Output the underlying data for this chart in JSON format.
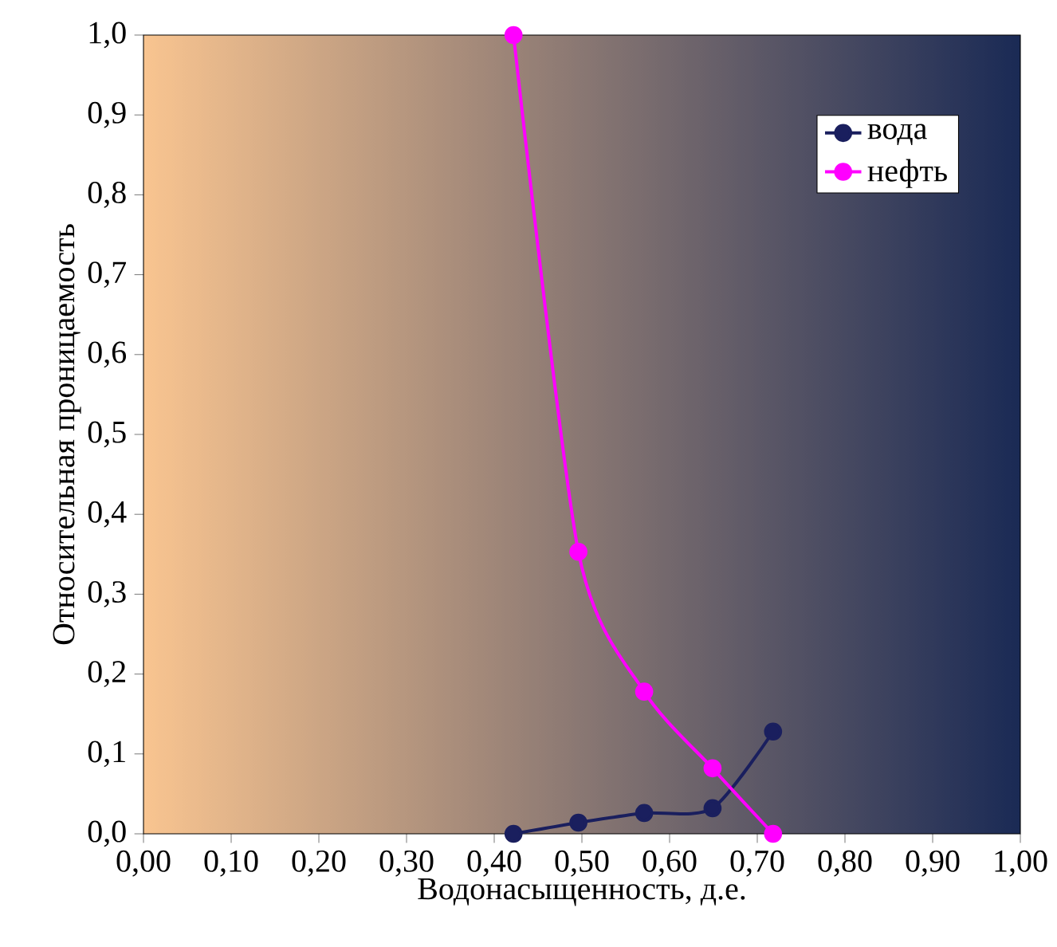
{
  "chart_data": {
    "type": "line",
    "xlabel": "Водонасыщенность, д.е.",
    "ylabel": "Относительная проницаемость",
    "x": [
      0.422,
      0.496,
      0.571,
      0.649,
      0.718
    ],
    "series": [
      {
        "name": "вода",
        "color": "#1a1f5e",
        "values": [
          0.0,
          0.014,
          0.026,
          0.032,
          0.128
        ]
      },
      {
        "name": "нефть",
        "color": "#ff00ff",
        "values": [
          1.0,
          0.353,
          0.178,
          0.082,
          0.0
        ]
      }
    ],
    "xlim": [
      0,
      1
    ],
    "ylim": [
      0,
      1
    ],
    "xticks": [
      {
        "value": 0,
        "label": "0,00"
      },
      {
        "value": 0.1,
        "label": "0,10"
      },
      {
        "value": 0.2,
        "label": "0,20"
      },
      {
        "value": 0.3,
        "label": "0,30"
      },
      {
        "value": 0.4,
        "label": "0,40"
      },
      {
        "value": 0.5,
        "label": "0,50"
      },
      {
        "value": 0.6,
        "label": "0,60"
      },
      {
        "value": 0.7,
        "label": "0,70"
      },
      {
        "value": 0.8,
        "label": "0,80"
      },
      {
        "value": 0.9,
        "label": "0,90"
      },
      {
        "value": 1,
        "label": "1,00"
      }
    ],
    "yticks": [
      {
        "value": 0,
        "label": "0,0"
      },
      {
        "value": 0.1,
        "label": "0,1"
      },
      {
        "value": 0.2,
        "label": "0,2"
      },
      {
        "value": 0.3,
        "label": "0,3"
      },
      {
        "value": 0.4,
        "label": "0,4"
      },
      {
        "value": 0.5,
        "label": "0,5"
      },
      {
        "value": 0.6,
        "label": "0,6"
      },
      {
        "value": 0.7,
        "label": "0,7"
      },
      {
        "value": 0.8,
        "label": "0,8"
      },
      {
        "value": 0.9,
        "label": "0,9"
      },
      {
        "value": 1,
        "label": "1,0"
      }
    ],
    "marker": "circle",
    "line_style": "solid",
    "grid": false,
    "legend": "top right"
  }
}
